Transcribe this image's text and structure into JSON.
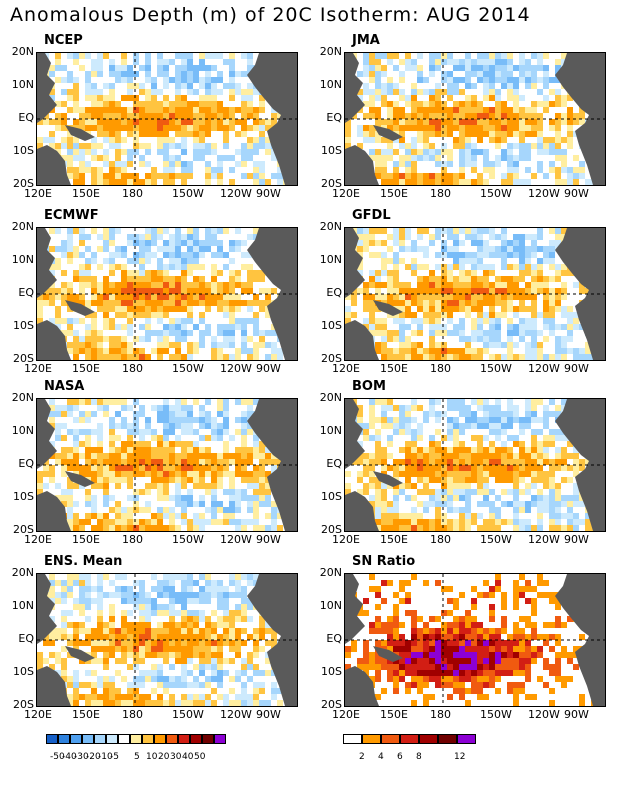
{
  "title": "Anomalous Depth (m) of 20C Isotherm: AUG 2014",
  "chart_data": {
    "type": "heatmap",
    "panels": [
      {
        "name": "NCEP"
      },
      {
        "name": "JMA"
      },
      {
        "name": "ECMWF"
      },
      {
        "name": "GFDL"
      },
      {
        "name": "NASA"
      },
      {
        "name": "BOM"
      },
      {
        "name": "ENS. Mean"
      },
      {
        "name": "SN Ratio"
      }
    ],
    "x_ticks": [
      "120E",
      "150E",
      "180",
      "150W",
      "120W",
      "90W"
    ],
    "y_ticks": [
      "20N",
      "10N",
      "EQ",
      "10S",
      "20S"
    ],
    "xlim": [
      "120E",
      "70W"
    ],
    "ylim": [
      "20S",
      "20N"
    ],
    "grid": "dashed lines at EQ and 180",
    "anomaly_colorbar": {
      "labels": [
        "-50",
        "-40",
        "-30",
        "-20",
        "-10",
        "-5",
        "5",
        "10",
        "20",
        "30",
        "40",
        "50"
      ],
      "colors": [
        "#1660c8",
        "#2f82de",
        "#4fa0f0",
        "#78bcf8",
        "#a6d6fc",
        "#cdeafd",
        "#ffffff",
        "#ffeea0",
        "#ffc440",
        "#ff9a00",
        "#f05a10",
        "#d21e14",
        "#a00000",
        "#700000",
        "#8c00d4"
      ]
    },
    "sn_colorbar": {
      "labels": [
        "2",
        "4",
        "6",
        "8",
        "12"
      ],
      "colors": [
        "#ffffff",
        "#ff9a00",
        "#f05a10",
        "#d21e14",
        "#a00000",
        "#700000",
        "#8c00d4"
      ]
    }
  }
}
